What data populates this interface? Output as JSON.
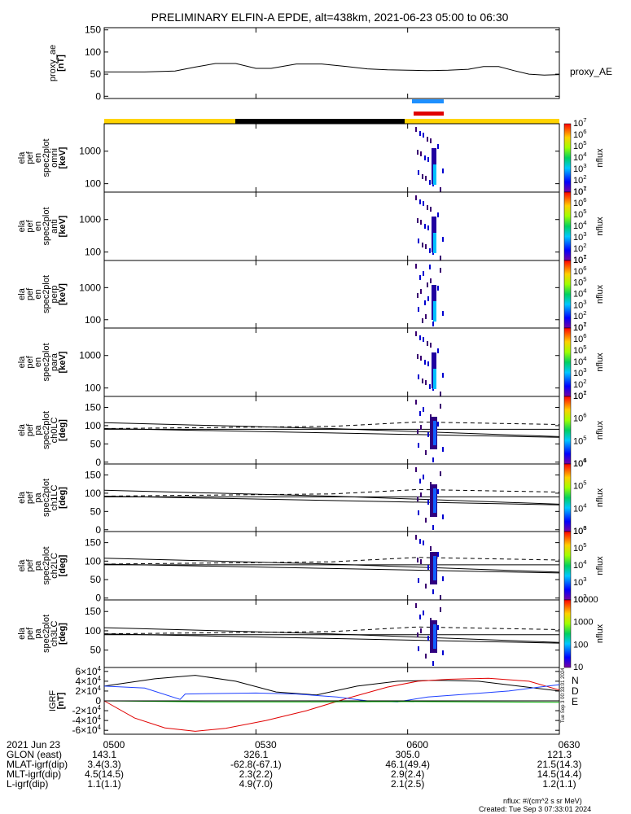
{
  "figure": {
    "title": "PRELIMINARY ELFIN-A EPDE, alt=438km, 2021-06-23 05:00 to 06:30",
    "footer_units": "nflux: #/(cm^2 s sr MeV)",
    "footer_created": "Created: Tue Sep  3 07:33:01 2024",
    "side_stamp": "Tue Sep  3 00:33:01 2024",
    "colors": {
      "yellow": "#ffd400",
      "black": "#000000",
      "blue": "#1e90ff",
      "red": "#e00000",
      "green": "#00c000"
    }
  },
  "chart_data": {
    "type": "line",
    "time_range": [
      "05:00",
      "06:30"
    ],
    "time_ticks": [
      "0500",
      "0530",
      "0600",
      "0630"
    ],
    "panels": [
      {
        "id": "proxy_ae",
        "ylabel": [
          "proxy_ae",
          "[nT]"
        ],
        "ylim": [
          -5,
          155
        ],
        "yticks": [
          "0",
          "50",
          "100",
          "150"
        ],
        "yticks_values": [
          0,
          50,
          100,
          150
        ],
        "legend": "proxy_AE",
        "series": [
          {
            "name": "proxy_AE",
            "t": [
              0,
              8,
              14,
              18,
              22,
              26,
              30,
              33,
              38,
              43,
              48,
              52,
              56,
              60,
              64,
              68,
              72,
              75,
              78,
              81,
              84,
              87,
              90
            ],
            "v": [
              55,
              55,
              57,
              66,
              74,
              74,
              63,
              63,
              73,
              73,
              67,
              62,
              60,
              59,
              58,
              59,
              61,
              67,
              67,
              58,
              50,
              48,
              49
            ]
          }
        ]
      },
      {
        "id": "omni",
        "ylabel": [
          "ela",
          "pef",
          "en",
          "spec2plot",
          "omni",
          "[keV]"
        ],
        "ytick_labels": [
          "100",
          "1000"
        ],
        "ytick_values": [
          100,
          1000
        ],
        "ylim": [
          55,
          7000
        ],
        "colorbar": {
          "label": "nflux",
          "ticks": [
            "10",
            "10",
            "10",
            "10",
            "10",
            "10",
            "10"
          ],
          "exponents": [
            "1",
            "2",
            "3",
            "4",
            "5",
            "6",
            "7"
          ]
        }
      },
      {
        "id": "anti",
        "ylabel": [
          "ela",
          "pef",
          "en",
          "spec2plot",
          "anti",
          "[keV]"
        ],
        "ytick_labels": [
          "100",
          "1000"
        ],
        "ytick_values": [
          100,
          1000
        ],
        "ylim": [
          55,
          7000
        ],
        "colorbar": {
          "label": "nflux",
          "ticks": [
            "10",
            "10",
            "10",
            "10",
            "10",
            "10",
            "10"
          ],
          "exponents": [
            "1",
            "2",
            "3",
            "4",
            "5",
            "6",
            "7"
          ]
        }
      },
      {
        "id": "perp",
        "ylabel": [
          "ela",
          "pef",
          "en",
          "spec2plot",
          "perp",
          "[keV]"
        ],
        "ytick_labels": [
          "100",
          "1000"
        ],
        "ytick_values": [
          100,
          1000
        ],
        "ylim": [
          55,
          7000
        ],
        "colorbar": {
          "label": "nflux",
          "ticks": [
            "10",
            "10",
            "10",
            "10",
            "10",
            "10",
            "10"
          ],
          "exponents": [
            "1",
            "2",
            "3",
            "4",
            "5",
            "6",
            "7"
          ]
        }
      },
      {
        "id": "para",
        "ylabel": [
          "ela",
          "pef",
          "en",
          "spec2plot",
          "para",
          "[keV]"
        ],
        "ytick_labels": [
          "100",
          "1000"
        ],
        "ytick_values": [
          100,
          1000
        ],
        "ylim": [
          55,
          7000
        ],
        "colorbar": {
          "label": "nflux",
          "ticks": [
            "10",
            "10",
            "10",
            "10",
            "10",
            "10",
            "10"
          ],
          "exponents": [
            "1",
            "2",
            "3",
            "4",
            "5",
            "6",
            "7"
          ]
        }
      },
      {
        "id": "ch0LC",
        "ylabel": [
          "ela",
          "pef",
          "pa",
          "spec2plot",
          "ch0LC",
          "[deg]"
        ],
        "ytick_labels": [
          "0",
          "50",
          "100",
          "150"
        ],
        "ytick_values": [
          0,
          50,
          100,
          150
        ],
        "ylim": [
          -5,
          180
        ],
        "colorbar": {
          "label": "nflux",
          "ticks": [
            "10",
            "10",
            "10",
            "10"
          ],
          "exponents": [
            "4",
            "5",
            "6",
            "7"
          ]
        }
      },
      {
        "id": "ch1LC",
        "ylabel": [
          "ela",
          "pef",
          "pa",
          "spec2plot",
          "ch1LC",
          "[deg]"
        ],
        "ytick_labels": [
          "0",
          "50",
          "100",
          "150"
        ],
        "ytick_values": [
          0,
          50,
          100,
          150
        ],
        "ylim": [
          -5,
          180
        ],
        "colorbar": {
          "label": "nflux",
          "ticks": [
            "10",
            "10",
            "10",
            "10"
          ],
          "exponents": [
            "3",
            "4",
            "5",
            "6"
          ]
        }
      },
      {
        "id": "ch2LC",
        "ylabel": [
          "ela",
          "pef",
          "pa",
          "spec2plot",
          "ch2LC",
          "[deg]"
        ],
        "ytick_labels": [
          "0",
          "50",
          "100",
          "150"
        ],
        "ytick_values": [
          0,
          50,
          100,
          150
        ],
        "ylim": [
          -5,
          180
        ],
        "colorbar": {
          "label": "nflux",
          "ticks": [
            "10",
            "10",
            "10",
            "10",
            "10"
          ],
          "exponents": [
            "2",
            "3",
            "4",
            "5",
            "6"
          ]
        }
      },
      {
        "id": "ch3LC",
        "ylabel": [
          "ela",
          "pef",
          "pa",
          "spec2plot",
          "ch3LC",
          "[deg]"
        ],
        "ytick_labels": [
          "50",
          "100",
          "150"
        ],
        "ytick_values": [
          50,
          100,
          150
        ],
        "ylim": [
          5,
          180
        ],
        "colorbar": {
          "label": "nflux",
          "ticks": [
            "10",
            "100",
            "1000",
            "10000"
          ],
          "exponents": [
            "",
            "",
            "",
            ""
          ]
        }
      },
      {
        "id": "igrf",
        "ylabel": [
          "IGRF",
          "[nT]"
        ],
        "ytick_labels": [
          "-6",
          "-4",
          "-2",
          "0",
          "2",
          "4",
          "6"
        ],
        "ytick_values": [
          -60000,
          -40000,
          -20000,
          0,
          20000,
          40000,
          60000
        ],
        "ylim": [
          -68000,
          68000
        ],
        "legend": [
          "N",
          "D",
          "E"
        ],
        "series": [
          {
            "name": "N",
            "t": [
              0,
              10,
              18,
              26,
              34,
              42,
              50,
              58,
              66,
              74,
              82,
              90
            ],
            "v": [
              30000,
              45000,
              52000,
              40000,
              18000,
              12000,
              30000,
              40000,
              42000,
              40000,
              30000,
              20000
            ]
          },
          {
            "name": "D",
            "t": [
              0,
              6,
              12,
              18,
              24,
              32,
              40,
              48,
              56,
              62,
              68,
              76,
              84,
              90
            ],
            "v": [
              0,
              -35000,
              -55000,
              -62000,
              -56000,
              -40000,
              -20000,
              5000,
              28000,
              40000,
              44000,
              46000,
              40000,
              22000
            ]
          },
          {
            "name": "E",
            "t": [
              0,
              8,
              15,
              16,
              22,
              30,
              38,
              46,
              52,
              58,
              64,
              72,
              80,
              86,
              90
            ],
            "v": [
              30000,
              26000,
              3000,
              14000,
              15000,
              16000,
              14000,
              8000,
              0,
              -2000,
              8000,
              14000,
              20000,
              28000,
              33000
            ]
          },
          {
            "name": "",
            "t": [
              0,
              20,
              40,
              60,
              90
            ],
            "v": [
              0,
              -2000,
              -2000,
              -1500,
              -3000
            ]
          }
        ]
      }
    ],
    "ephemeris": {
      "rows": [
        {
          "label": "2021 Jun 23",
          "values": [
            "0500",
            "0530",
            "0600",
            "0630"
          ]
        },
        {
          "label": "GLON (east)",
          "values": [
            "143.1",
            "326.1",
            "305.0",
            "121.3"
          ]
        },
        {
          "label": "MLAT-igrf(dip)",
          "values": [
            "3.4(3.3)",
            "-62.8(-67.1)",
            "46.1(49.4)",
            "21.5(14.3)"
          ]
        },
        {
          "label": "MLT-igrf(dip)",
          "values": [
            "4.5(14.5)",
            "2.3(2.2)",
            "2.9(2.4)",
            "14.5(14.4)"
          ]
        },
        {
          "label": "L-igrf(dip)",
          "values": [
            "1.1(1.1)",
            "4.9(7.0)",
            "2.1(2.5)",
            "1.2(1.1)"
          ]
        }
      ]
    }
  }
}
